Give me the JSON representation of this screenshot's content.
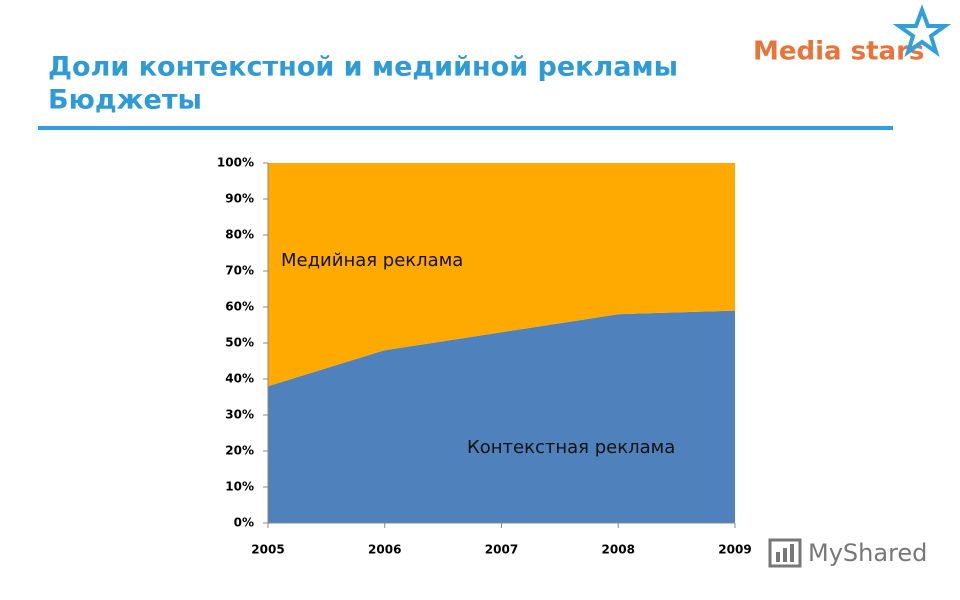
{
  "logo": "Media stars",
  "watermark": "MyShared",
  "chart_data": {
    "type": "area",
    "stacked": true,
    "title": "Доли контекстной и медийной рекламы",
    "subtitle": "Бюджеты",
    "categories": [
      "2005",
      "2006",
      "2007",
      "2008",
      "2009"
    ],
    "series": [
      {
        "name": "Контекстная реклама",
        "color": "#4F81BD",
        "values": [
          38,
          48,
          53,
          58,
          59
        ]
      },
      {
        "name": "Медийная реклама",
        "color": "#FFAA00",
        "values": [
          62,
          52,
          47,
          42,
          41
        ]
      }
    ],
    "ylim": [
      0,
      100
    ],
    "yticks": [
      {
        "value": 0,
        "label": "0%"
      },
      {
        "value": 10,
        "label": "10%"
      },
      {
        "value": 20,
        "label": "20%"
      },
      {
        "value": 30,
        "label": "30%"
      },
      {
        "value": 40,
        "label": "40%"
      },
      {
        "value": 50,
        "label": "50%"
      },
      {
        "value": 60,
        "label": "60%"
      },
      {
        "value": 70,
        "label": "70%"
      },
      {
        "value": 80,
        "label": "80%"
      },
      {
        "value": 90,
        "label": "90%"
      },
      {
        "value": 100,
        "label": "100%"
      }
    ],
    "grid": false
  }
}
